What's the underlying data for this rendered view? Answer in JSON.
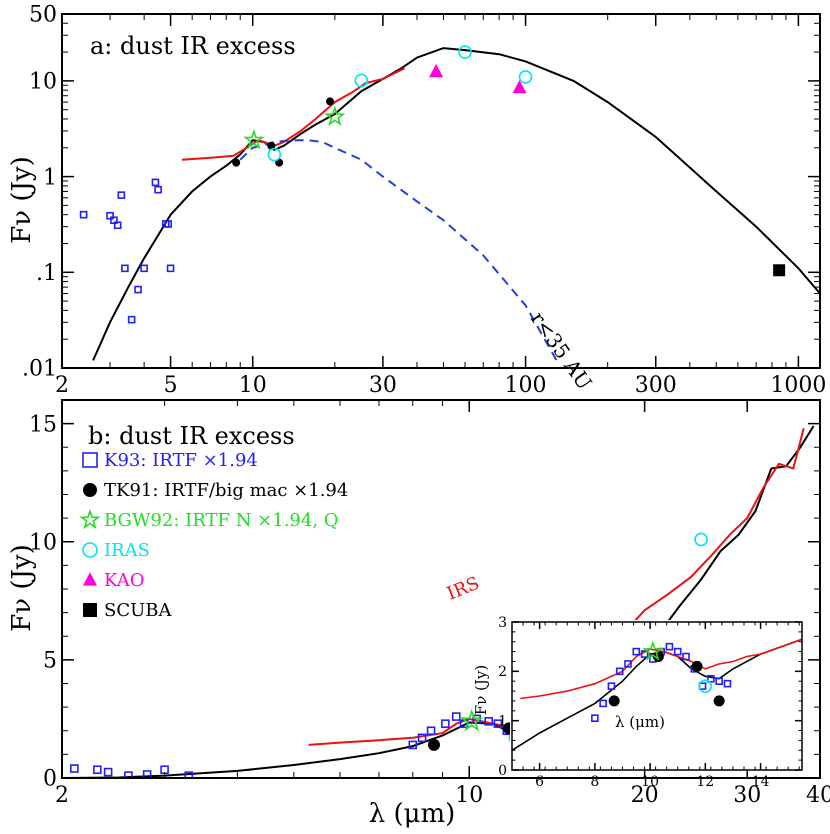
{
  "colors": {
    "blue": "#2020ff",
    "black": "#000000",
    "green": "#22dd22",
    "cyan": "#00e5ee",
    "magenta": "#ff00dd",
    "red": "#ee1111",
    "dash_blue": "#1f3fe0"
  },
  "chart_data": [
    {
      "panel": "a",
      "type": "scatter",
      "title": "a: dust IR excess",
      "xlabel": "",
      "ylabel": "Fν (Jy)",
      "x_scale": "log",
      "y_scale": "log",
      "xlim": [
        2,
        1200
      ],
      "ylim": [
        0.01,
        50
      ],
      "x_ticks": [
        2,
        5,
        10,
        30,
        100,
        300,
        1000
      ],
      "x_tick_labels": [
        "2",
        "5",
        "10",
        "30",
        "100",
        "300",
        "1000"
      ],
      "y_ticks": [
        0.01,
        0.1,
        1,
        10,
        50
      ],
      "y_tick_labels": [
        ".01",
        ".1",
        "1",
        "10",
        "50"
      ],
      "annotations": [
        {
          "text": "r<35 AU",
          "x": 120,
          "y": 0.05
        }
      ],
      "series": [
        {
          "name": "K93: IRTF ×1.94",
          "marker": "open-square",
          "color": "blue",
          "x": [
            2.4,
            3.0,
            3.1,
            3.2,
            3.3,
            3.4,
            3.6,
            3.8,
            4.0,
            4.4,
            4.5,
            4.8,
            4.9,
            5.0
          ],
          "y": [
            0.4,
            0.39,
            0.35,
            0.31,
            0.64,
            0.11,
            0.032,
            0.066,
            0.11,
            0.87,
            0.73,
            0.32,
            0.32,
            0.11
          ]
        },
        {
          "name": "TK91: IRTF/big mac ×1.94",
          "marker": "filled-circle",
          "color": "black",
          "x": [
            8.7,
            11.7,
            12.5,
            19.2
          ],
          "y": [
            1.4,
            2.1,
            1.4,
            6.1
          ]
        },
        {
          "name": "BGW92: IRTF N ×1.94, Q",
          "marker": "open-star",
          "color": "green",
          "x": [
            10.1,
            20.0
          ],
          "y": [
            2.4,
            4.2
          ]
        },
        {
          "name": "IRAS",
          "marker": "open-circle",
          "color": "cyan",
          "x": [
            12.0,
            25.0,
            60.0,
            100.0
          ],
          "y": [
            1.7,
            10.1,
            20.0,
            11.0
          ]
        },
        {
          "name": "KAO",
          "marker": "filled-triangle",
          "color": "magenta",
          "x": [
            47.0,
            95.0
          ],
          "y": [
            12.5,
            8.5
          ]
        },
        {
          "name": "SCUBA",
          "marker": "filled-square",
          "color": "black",
          "x": [
            850.0
          ],
          "y": [
            0.105
          ]
        },
        {
          "name": "",
          "style": "solid",
          "color": "black",
          "x": [
            2.6,
            3.0,
            3.5,
            4.0,
            5.0,
            6.0,
            7.0,
            8.0,
            9.0,
            10.0,
            11.0,
            12.0,
            13.0,
            15.0,
            17.0,
            20.0,
            25.0,
            30.0,
            35.0,
            40.0,
            50.0,
            60.0,
            80.0,
            100.0,
            150.0,
            200.0,
            300.0,
            500.0,
            700.0,
            1000.0,
            1200.0
          ],
          "y": [
            0.012,
            0.03,
            0.07,
            0.14,
            0.4,
            0.7,
            1.0,
            1.3,
            1.7,
            2.4,
            2.3,
            1.9,
            2.1,
            2.8,
            3.5,
            4.5,
            7.8,
            10.5,
            13.5,
            17.5,
            22.0,
            21.0,
            19.0,
            16.0,
            10.0,
            6.0,
            2.6,
            0.7,
            0.3,
            0.11,
            0.06
          ]
        },
        {
          "name": "",
          "style": "solid",
          "color": "red",
          "x": [
            5.5,
            6.5,
            7.5,
            8.5,
            9.5,
            10.5,
            11.0,
            12.0,
            13.0,
            15.0,
            17.0,
            20.0,
            23.0,
            26.0,
            30.0,
            33.0,
            36.0
          ],
          "y": [
            1.5,
            1.55,
            1.6,
            1.65,
            2.0,
            2.4,
            2.3,
            2.1,
            2.3,
            3.0,
            4.0,
            6.0,
            7.5,
            9.5,
            10.5,
            12.0,
            13.5
          ]
        },
        {
          "name": "r<35 AU",
          "style": "dashed",
          "color": "dash_blue",
          "x": [
            9.0,
            10.0,
            12.0,
            14.0,
            16.0,
            18.0,
            20.0,
            25.0,
            30.0,
            40.0,
            50.0,
            70.0,
            100.0,
            130.0
          ],
          "y": [
            1.5,
            2.0,
            2.3,
            2.4,
            2.4,
            2.3,
            2.0,
            1.5,
            1.0,
            0.55,
            0.35,
            0.15,
            0.045,
            0.012
          ]
        }
      ]
    },
    {
      "panel": "b",
      "type": "scatter",
      "title": "b: dust IR excess",
      "xlabel": "λ (μm)",
      "ylabel": "Fν (Jy)",
      "x_scale": "log",
      "y_scale": "linear",
      "xlim": [
        2,
        40
      ],
      "ylim": [
        0,
        16
      ],
      "x_ticks": [
        2,
        10,
        20,
        30,
        40
      ],
      "x_tick_labels": [
        "2",
        "10",
        "20",
        "30",
        "40"
      ],
      "y_ticks": [
        0,
        5,
        10,
        15
      ],
      "y_tick_labels": [
        "0",
        "5",
        "10",
        "15"
      ],
      "annotations": [
        {
          "text": "IRS",
          "x": 17,
          "y": 7.6
        }
      ],
      "legend": [
        {
          "label": "K93: IRTF ×1.94",
          "marker": "open-square",
          "color": "blue"
        },
        {
          "label": "TK91: IRTF/big mac ×1.94",
          "marker": "filled-circle",
          "color": "black"
        },
        {
          "label": "BGW92: IRTF N ×1.94, Q",
          "marker": "open-star",
          "color": "green"
        },
        {
          "label": "IRAS",
          "marker": "open-circle",
          "color": "cyan"
        },
        {
          "label": "KAO",
          "marker": "filled-triangle",
          "color": "magenta"
        },
        {
          "label": "SCUBA",
          "marker": "filled-square",
          "color": "black"
        }
      ],
      "series": [
        {
          "name": "K93: IRTF ×1.94",
          "marker": "open-square",
          "color": "blue",
          "x": [
            2.1,
            2.3,
            2.4,
            2.6,
            2.8,
            3.0,
            3.3,
            8.0,
            8.3,
            8.6,
            9.1,
            9.5,
            9.8,
            10.3,
            10.8,
            11.2,
            11.6,
            12.0,
            12.3
          ],
          "y": [
            0.4,
            0.35,
            0.25,
            0.1,
            0.15,
            0.35,
            0.1,
            1.4,
            1.7,
            2.0,
            2.3,
            2.6,
            2.3,
            2.5,
            2.4,
            2.3,
            2.0,
            1.7,
            1.9
          ]
        },
        {
          "name": "TK91: IRTF/big mac ×1.94",
          "marker": "filled-circle",
          "color": "black",
          "x": [
            8.7,
            11.7,
            12.5,
            19.2
          ],
          "y": [
            1.4,
            2.1,
            1.4,
            6.1
          ]
        },
        {
          "name": "BGW92: IRTF N ×1.94, Q",
          "marker": "open-star",
          "color": "green",
          "x": [
            10.1,
            20.0
          ],
          "y": [
            2.4,
            4.2
          ]
        },
        {
          "name": "IRAS",
          "marker": "open-circle",
          "color": "cyan",
          "x": [
            12.0,
            25.0
          ],
          "y": [
            1.7,
            10.1
          ]
        },
        {
          "name": "",
          "style": "solid",
          "color": "black",
          "x": [
            2.0,
            2.5,
            3.0,
            4.0,
            5.0,
            6.0,
            7.0,
            8.0,
            9.0,
            10.0,
            11.0,
            11.5,
            12.0,
            13.0,
            15.0,
            17.0,
            19.0,
            21.0,
            23.0,
            25.0,
            27.0,
            29.0,
            31.0,
            33.0,
            35.0,
            37.0,
            39.0
          ],
          "y": [
            0.0,
            0.02,
            0.1,
            0.3,
            0.55,
            0.8,
            1.05,
            1.35,
            1.8,
            2.35,
            2.3,
            2.05,
            1.9,
            2.05,
            2.7,
            3.6,
            4.7,
            6.0,
            7.3,
            8.4,
            9.6,
            10.3,
            11.3,
            13.1,
            13.2,
            14.0,
            14.9
          ]
        },
        {
          "name": "IRS",
          "style": "solid",
          "color": "red",
          "x": [
            5.3,
            6.0,
            7.0,
            8.0,
            9.0,
            9.5,
            10.0,
            10.5,
            11.0,
            11.5,
            12.0,
            13.0,
            14.0,
            15.0,
            16.0,
            17.0,
            18.0,
            19.0,
            20.0,
            22.0,
            24.0,
            26.0,
            28.0,
            30.0,
            32.0,
            34.0,
            36.0,
            37.5
          ],
          "y": [
            1.4,
            1.5,
            1.6,
            1.7,
            1.9,
            2.3,
            2.5,
            2.4,
            2.3,
            2.2,
            2.1,
            2.3,
            2.7,
            3.3,
            4.0,
            4.9,
            5.8,
            6.5,
            7.1,
            7.8,
            8.5,
            9.4,
            10.3,
            11.0,
            12.3,
            13.3,
            13.1,
            14.8
          ]
        }
      ]
    },
    {
      "panel": "b-inset",
      "type": "scatter",
      "title": "",
      "xlabel": "λ (μm)",
      "ylabel": "Fν (Jy)",
      "x_scale": "linear",
      "y_scale": "linear",
      "xlim": [
        5,
        15.5
      ],
      "ylim": [
        0,
        3
      ],
      "x_ticks": [
        6,
        8,
        10,
        12,
        14
      ],
      "x_tick_labels": [
        "6",
        "8",
        "10",
        "12",
        "14"
      ],
      "y_ticks": [
        0,
        1,
        2,
        3
      ],
      "y_tick_labels": [
        "0",
        "1",
        "2",
        "3"
      ],
      "series": [
        {
          "name": "K93: IRTF ×1.94",
          "marker": "open-square",
          "color": "blue",
          "x": [
            8.0,
            8.3,
            8.6,
            8.9,
            9.2,
            9.5,
            9.8,
            10.1,
            10.4,
            10.7,
            11.0,
            11.3,
            11.6,
            11.9,
            12.2,
            12.5,
            12.8
          ],
          "y": [
            1.05,
            1.35,
            1.7,
            2.0,
            2.15,
            2.4,
            2.35,
            2.25,
            2.4,
            2.5,
            2.4,
            2.3,
            2.05,
            1.7,
            1.85,
            1.8,
            1.75
          ]
        },
        {
          "name": "TK91: IRTF/big mac ×1.94",
          "marker": "filled-circle",
          "color": "black",
          "x": [
            8.7,
            10.3,
            11.7,
            12.5
          ],
          "y": [
            1.4,
            2.3,
            2.1,
            1.4
          ]
        },
        {
          "name": "BGW92: IRTF N ×1.94, Q",
          "marker": "open-star",
          "color": "green",
          "x": [
            10.1
          ],
          "y": [
            2.4
          ]
        },
        {
          "name": "IRAS",
          "marker": "open-circle",
          "color": "cyan",
          "x": [
            12.0
          ],
          "y": [
            1.7
          ]
        },
        {
          "name": "",
          "style": "solid",
          "color": "black",
          "x": [
            5.0,
            6.0,
            7.0,
            8.0,
            9.0,
            9.5,
            10.0,
            10.5,
            11.0,
            11.5,
            12.0,
            12.5,
            13.0,
            14.0,
            15.0,
            15.5
          ],
          "y": [
            0.4,
            0.75,
            1.05,
            1.35,
            1.8,
            2.1,
            2.35,
            2.4,
            2.3,
            2.05,
            1.9,
            1.85,
            2.05,
            2.35,
            2.55,
            2.65
          ]
        },
        {
          "name": "IRS",
          "style": "solid",
          "color": "red",
          "x": [
            5.3,
            6.0,
            7.0,
            8.0,
            9.0,
            9.5,
            10.0,
            10.5,
            11.0,
            11.5,
            12.0,
            12.5,
            13.0,
            13.5,
            14.0,
            14.5,
            15.0,
            15.5
          ],
          "y": [
            1.45,
            1.5,
            1.6,
            1.75,
            2.0,
            2.3,
            2.45,
            2.4,
            2.3,
            2.2,
            2.05,
            2.15,
            2.2,
            2.3,
            2.35,
            2.45,
            2.55,
            2.65
          ]
        }
      ]
    }
  ]
}
